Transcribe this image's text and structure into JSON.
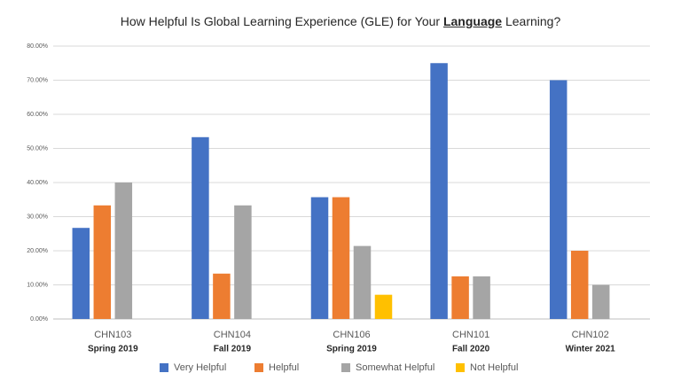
{
  "chart_data": {
    "type": "bar",
    "title": {
      "before": "How Helpful Is Global Learning Experience (GLE) for Your",
      "emphasis": "Language",
      "after": "Learning?"
    },
    "categories": [
      "CHN103",
      "CHN104",
      "CHN106",
      "CHN101",
      "CHN102"
    ],
    "category_terms": [
      "Spring 2019",
      "Fall 2019",
      "Spring 2019",
      "Fall 2020",
      "Winter 2021"
    ],
    "series": [
      {
        "name": "Very Helpful",
        "color": "#4472c4",
        "values": [
          26.7,
          53.3,
          35.7,
          75,
          70
        ]
      },
      {
        "name": "Helpful",
        "color": "#ed7d31",
        "values": [
          33.3,
          13.3,
          35.7,
          12.5,
          20
        ]
      },
      {
        "name": "Somewhat Helpful",
        "color": "#a5a5a5",
        "values": [
          40,
          33.3,
          21.4,
          12.5,
          10
        ]
      },
      {
        "name": "Not Helpful",
        "color": "#ffc000",
        "values": [
          0,
          0,
          7.1,
          0,
          0
        ]
      }
    ],
    "ylim": [
      0,
      80
    ],
    "yticks": [
      {
        "value": 0,
        "label": "0.00%"
      },
      {
        "value": 10,
        "label": "10.00%"
      },
      {
        "value": 20,
        "label": "20.00%"
      },
      {
        "value": 30,
        "label": "30.00%"
      },
      {
        "value": 40,
        "label": "40.00%"
      },
      {
        "value": 50,
        "label": "50.00%"
      },
      {
        "value": 60,
        "label": "60.00%"
      },
      {
        "value": 70,
        "label": "70.00%"
      },
      {
        "value": 80,
        "label": "80.00%"
      }
    ],
    "grid": true,
    "legend": "bottom"
  }
}
